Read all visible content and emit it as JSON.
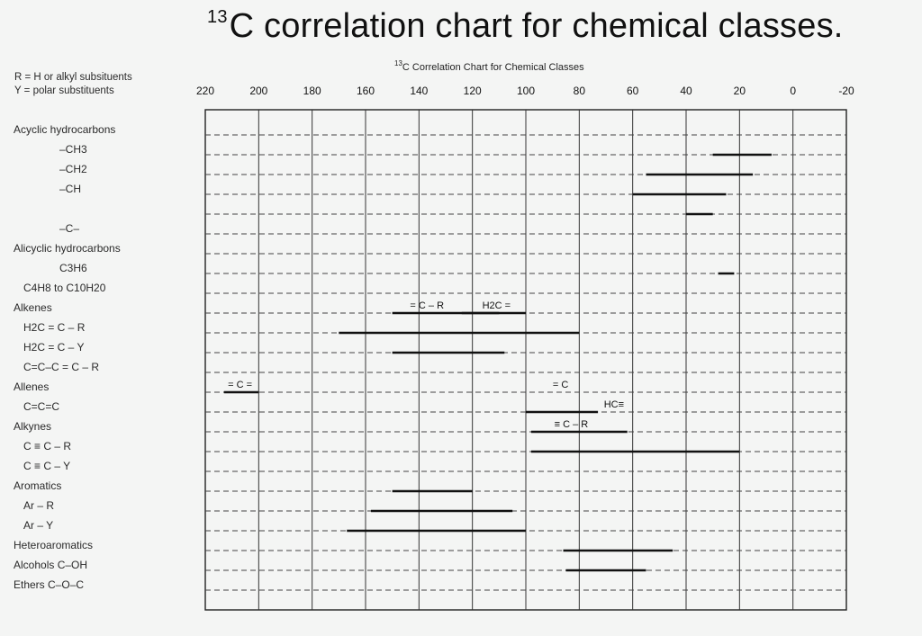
{
  "chart_data": {
    "type": "range",
    "title": "13C correlation chart for chemical classes.",
    "subtitle": "13C Correlation Chart for Chemical Classes",
    "xlim": [
      220,
      -20
    ],
    "x_reversed": true,
    "ticks": [
      220,
      200,
      180,
      160,
      140,
      120,
      100,
      80,
      60,
      40,
      20,
      0,
      -20
    ],
    "grid": true,
    "legend": [
      "R = H or alkyl subsituents",
      "Y = polar substituents"
    ],
    "rows": [
      {
        "label": "Acyclic hydrocarbons",
        "kind": "group"
      },
      {
        "label": "–CH3",
        "kind": "formula",
        "ranges": [
          [
            30,
            8
          ]
        ]
      },
      {
        "label": "–CH2",
        "kind": "formula",
        "ranges": [
          [
            55,
            15
          ]
        ]
      },
      {
        "label": "–CH",
        "kind": "formula",
        "ranges": [
          [
            60,
            25
          ]
        ]
      },
      {
        "label": "",
        "kind": "blank",
        "ranges": [
          [
            40,
            30
          ]
        ]
      },
      {
        "label": "–C–",
        "kind": "formula",
        "ranges": []
      },
      {
        "label": "Alicyclic hydrocarbons",
        "kind": "group"
      },
      {
        "label": "C3H6",
        "kind": "formula",
        "ranges": [
          [
            28,
            22
          ]
        ]
      },
      {
        "label": "C4H8 to C10H20",
        "kind": "sub",
        "ranges": []
      },
      {
        "label": "Alkenes",
        "kind": "group",
        "ranges": [
          [
            150,
            110
          ],
          [
            124,
            100
          ]
        ]
      },
      {
        "label": "H2C = C – R",
        "kind": "sub",
        "ranges": [
          [
            170,
            80
          ]
        ]
      },
      {
        "label": "H2C = C – Y",
        "kind": "sub",
        "ranges": [
          [
            150,
            108
          ]
        ]
      },
      {
        "label": "C=C–C = C – R",
        "kind": "sub",
        "ranges": []
      },
      {
        "label": "Allenes",
        "kind": "group",
        "ranges": [
          [
            213,
            200
          ]
        ]
      },
      {
        "label": "C=C=C",
        "kind": "sub",
        "ranges": [
          [
            100,
            73
          ]
        ]
      },
      {
        "label": "Alkynes",
        "kind": "group",
        "ranges": [
          [
            98,
            62
          ]
        ]
      },
      {
        "label": "C ≡ C – R",
        "kind": "sub",
        "ranges": [
          [
            98,
            20
          ]
        ]
      },
      {
        "label": "C ≡ C – Y",
        "kind": "sub",
        "ranges": []
      },
      {
        "label": "Aromatics",
        "kind": "group",
        "ranges": [
          [
            150,
            120
          ]
        ]
      },
      {
        "label": "Ar – R",
        "kind": "sub",
        "ranges": [
          [
            158,
            105
          ]
        ]
      },
      {
        "label": "Ar – Y",
        "kind": "sub",
        "ranges": [
          [
            167,
            100
          ]
        ]
      },
      {
        "label": "Heteroaromatics",
        "kind": "group",
        "ranges": [
          [
            86,
            45
          ]
        ]
      },
      {
        "label": "Alcohols C–OH",
        "kind": "group",
        "ranges": [
          [
            85,
            55
          ]
        ]
      },
      {
        "label": "Ethers C–O–C",
        "kind": "group",
        "ranges": []
      }
    ],
    "annotations": [
      {
        "text": "= C – R",
        "x": 137,
        "row": 9
      },
      {
        "text": "H2C =",
        "x": 111,
        "row": 9
      },
      {
        "text": "= C",
        "x": 87,
        "row": 13
      },
      {
        "text": "= C =",
        "x": 207,
        "row": 13
      },
      {
        "text": "≡ C – R",
        "x": 83,
        "row": 15
      },
      {
        "text": "HC≡",
        "x": 67,
        "row": 14
      }
    ]
  }
}
